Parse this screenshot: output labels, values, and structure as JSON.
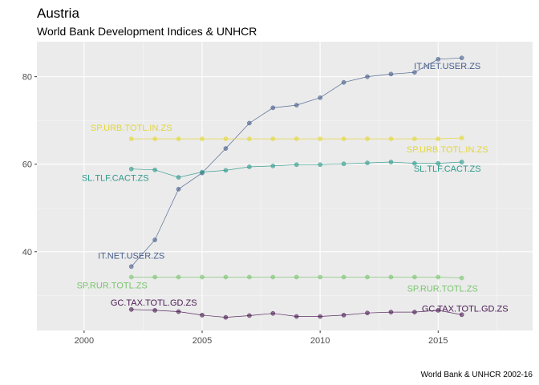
{
  "chart_data": {
    "type": "line",
    "title": "Austria",
    "subtitle": "World Bank Development Indices & UNHCR",
    "caption": "World Bank & UNHCR 2002-16",
    "xlabel": "",
    "ylabel": "",
    "xlim": [
      1998,
      2019
    ],
    "ylim": [
      22,
      88
    ],
    "x_ticks": [
      2000,
      2005,
      2010,
      2015
    ],
    "y_ticks": [
      40,
      60,
      80
    ],
    "grid": true,
    "legend": "none",
    "x": [
      2002,
      2003,
      2004,
      2005,
      2006,
      2007,
      2008,
      2009,
      2010,
      2011,
      2012,
      2013,
      2014,
      2015,
      2016
    ],
    "series": [
      {
        "name": "IT.NET.USER.ZS",
        "color": "#465E8C",
        "values": [
          36.6,
          42.7,
          54.3,
          58.0,
          63.6,
          69.4,
          72.9,
          73.5,
          75.2,
          78.7,
          80.0,
          80.6,
          81.0,
          84.0,
          84.3
        ]
      },
      {
        "name": "SP.URB.TOTL.IN.ZS",
        "color": "#E3D732",
        "values": [
          65.8,
          65.8,
          65.8,
          65.8,
          65.8,
          65.8,
          65.8,
          65.8,
          65.8,
          65.8,
          65.8,
          65.8,
          65.8,
          65.8,
          66.0
        ]
      },
      {
        "name": "SL.TLF.CACT.ZS",
        "color": "#2E9A8C",
        "values": [
          58.9,
          58.7,
          57.0,
          58.2,
          58.6,
          59.4,
          59.6,
          59.9,
          59.9,
          60.1,
          60.3,
          60.5,
          60.2,
          60.2,
          60.5
        ]
      },
      {
        "name": "SP.RUR.TOTL.ZS",
        "color": "#7AC46E",
        "values": [
          34.2,
          34.2,
          34.2,
          34.2,
          34.2,
          34.2,
          34.2,
          34.2,
          34.2,
          34.2,
          34.2,
          34.2,
          34.2,
          34.2,
          34.0
        ]
      },
      {
        "name": "GC.TAX.TOTL.GD.ZS",
        "color": "#4B1B54",
        "values": [
          26.8,
          26.6,
          26.3,
          25.5,
          25.0,
          25.4,
          25.9,
          25.2,
          25.2,
          25.5,
          26.0,
          26.2,
          26.2,
          26.6,
          25.6
        ]
      }
    ]
  }
}
